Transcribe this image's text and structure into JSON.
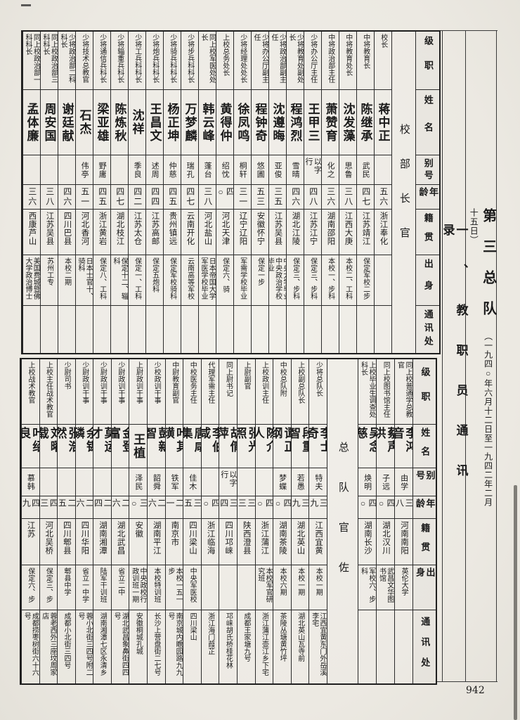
{
  "page": {
    "title_main": "第三总队",
    "title_dates": "（一九四○年六月十二日至一九四二年二月十五日）",
    "section_heading": "一、教职员通讯录",
    "page_number": "942"
  },
  "field_headers": [
    "级职",
    "姓名",
    "别号",
    "年龄",
    "籍贯",
    "出身",
    "通讯处"
  ],
  "table1": {
    "group_label": "校部长官",
    "rows": [
      {
        "rank": "校长",
        "name": "蒋中正",
        "alias": "",
        "age": "五六",
        "origin": "浙江奉化",
        "background": "",
        "address": ""
      },
      {
        "rank": "中将教育长",
        "name": "陈继承",
        "alias": "武民",
        "age": "四七",
        "origin": "江苏靖江",
        "background": "保定军校二步",
        "address": ""
      },
      {
        "rank": "中将教育处长",
        "name": "沈发藻",
        "alias": "思鲁",
        "age": "三八",
        "origin": "江西大庚",
        "background": "本校二、工科",
        "address": ""
      },
      {
        "rank": "中将政治部主任",
        "name": "萧赞育",
        "alias": "化之",
        "age": "三六",
        "origin": "湖南邵阳",
        "background": "本校一、步科",
        "address": ""
      },
      {
        "rank": "少将办公厅主任",
        "name": "王甲三",
        "alias": "以字行",
        "age": "四八",
        "origin": "江苏江宁",
        "background": "保定三、步科",
        "address": ""
      },
      {
        "rank": "少将教育处副处长",
        "name": "程鸿烈",
        "alias": "雪晴",
        "age": "四六",
        "origin": "湖北江陵",
        "background": "保定三、步科",
        "address": ""
      },
      {
        "rank": "少将政治部副主任",
        "name": "沈遵晦",
        "alias": "亚俊",
        "age": "三五",
        "origin": "江苏吴县",
        "background": "中央大学毕业中央政治学校毕业",
        "address": ""
      },
      {
        "rank": "少将办公厅副主任",
        "name": "程钟奇",
        "alias": "悠圃",
        "age": "五三",
        "origin": "安徽怀宁",
        "background": "保定一步",
        "address": ""
      },
      {
        "rank": "少将经理处处长",
        "name": "徐凤鸣",
        "alias": "桐轩",
        "age": "三一",
        "origin": "辽宁辽阳",
        "background": "军需学校毕业",
        "address": ""
      },
      {
        "rank": "上校总务处长",
        "name": "黄得仲",
        "alias": "绍忱",
        "age": "四○",
        "origin": "河北天津",
        "background": "保定六、骑",
        "address": ""
      },
      {
        "rank": "同上校军医处处长",
        "name": "韩云峰",
        "alias": "蓬台",
        "age": "三八",
        "origin": "河北盐山",
        "background": "日本帝国大学军医学校毕业",
        "address": ""
      },
      {
        "rank": "少将步兵科科长",
        "name": "万梦麟",
        "alias": "瑞孔",
        "age": "四七",
        "origin": "云南开化",
        "background": "云南高等军校",
        "address": ""
      },
      {
        "rank": "少将骑兵科科长",
        "name": "杨正坤",
        "alias": "仲慈",
        "age": "四五",
        "origin": "贵州镇远",
        "background": "保定军校骑科",
        "address": ""
      },
      {
        "rank": "少将炮兵科科长",
        "name": "王昌文",
        "alias": "述周",
        "age": "四四",
        "origin": "江苏高邮",
        "background": "保定五炮科",
        "address": ""
      },
      {
        "rank": "少将工兵科科长",
        "name": "沈祥",
        "alias": "季良",
        "age": "四二",
        "origin": "江苏太仓",
        "background": "保定一、工科",
        "address": ""
      },
      {
        "rank": "少将辎重兵科长",
        "name": "陈炼秋",
        "alias": "",
        "age": "四七",
        "origin": "湖北枝江",
        "background": "保定十二、辎科",
        "address": ""
      },
      {
        "rank": "少将通信兵科长",
        "name": "梁亚雄",
        "alias": "野庸",
        "age": "四五",
        "origin": "浙江黄岩",
        "background": "保定八、工科",
        "address": ""
      },
      {
        "rank": "少将技术总教官",
        "name": "石杰",
        "alias": "伟亭",
        "age": "五一",
        "origin": "河北香河",
        "background": "日本士官十、骑科",
        "address": ""
      },
      {
        "rank": "少将政治部二科科长",
        "name": "谢廷献",
        "alias": "",
        "age": "四六",
        "origin": "四川巴县",
        "background": "本校二期",
        "address": ""
      },
      {
        "rank": "同上校政治部三科科长",
        "name": "周安国",
        "alias": "",
        "age": "三八",
        "origin": "江苏吴县",
        "background": "苏州工专",
        "address": ""
      },
      {
        "rank": "同上校政治部一科科长",
        "name": "孟体廉",
        "alias": "",
        "age": "三六",
        "origin": "西康芦山",
        "background": "美国费城暨佛大学政治博士",
        "address": ""
      }
    ]
  },
  "table2": {
    "group_label": "总队官佐",
    "rows_right": [
      {
        "rank": "同上校普通学总教官",
        "name": "李鸿音",
        "alias": "由学",
        "age": "三八",
        "origin": "河南南阳",
        "background": "英伦大学",
        "address": ""
      },
      {
        "rank": "同上校图书馆主任",
        "name": "蔡声洪",
        "alias": "子远",
        "age": "四○",
        "origin": "湖北汉川",
        "background": "武昌文华图书馆",
        "address": ""
      },
      {
        "rank": "上校毕业生调查处科长",
        "name": "吴念慈",
        "alias": "焕明",
        "age": "四○",
        "origin": "湖南长沙",
        "background": "军校六、步科",
        "address": ""
      }
    ],
    "rows_left": [
      {
        "rank": "少将总队长",
        "name": "李士奇",
        "alias": "特夫",
        "age": "三九",
        "origin": "江西宜黄",
        "background": "本校一期",
        "address": "江西宜黄东门外岳溪李宅"
      },
      {
        "rank": "上校副总队长",
        "name": "段重智",
        "alias": "若愚",
        "age": "三九",
        "origin": "湖北英山",
        "background": "本校一期",
        "address": "湖北英山瓦寺前"
      },
      {
        "rank": "中校总队附",
        "name": "谭正纲",
        "alias": "梦蝶",
        "age": "四○",
        "origin": "湖南茶陵",
        "background": "本校六期",
        "address": "茶陵丛塘黄竹坪"
      },
      {
        "rank": "上校政训主任",
        "name": "陈介人",
        "alias": "",
        "age": "四○",
        "origin": "浙江蒲江",
        "background": "本校军官研究班",
        "address": "浙江蒲江壶江乡下宅"
      },
      {
        "rank": "上尉副官",
        "name": "张光照",
        "alias": "",
        "age": "三三",
        "origin": "陕西澄县",
        "background": "",
        "address": "成都王家塘九号"
      },
      {
        "rank": "同上尉书记",
        "name": "胡倩萍",
        "alias": "以字行",
        "age": "三四",
        "origin": "四川邛崃",
        "background": "",
        "address": "邛崃胡氏桥桂花林"
      },
      {
        "rank": "代理军需主任",
        "name": "李伯咸",
        "alias": "",
        "age": "四○",
        "origin": "浙江临海",
        "background": "",
        "address": "浙江海门葭芷"
      },
      {
        "rank": "中校医务主任",
        "name": "唐咸集",
        "alias": "佳木",
        "age": "三五",
        "origin": "四川梁山",
        "background": "中央军医校",
        "address": "四川梁山"
      },
      {
        "rank": "中尉教育副官",
        "name": "叶其璜",
        "alias": "铁军",
        "age": "二一",
        "origin": "南京市",
        "background": "本校一五一步",
        "address": "南京城内瞻园路九九号"
      },
      {
        "rank": "少校政训干事",
        "name": "彭新智",
        "alias": "韶舜",
        "age": "二六",
        "origin": "湖南平江",
        "background": "本校特训班",
        "address": "长沙上营盘街二七号"
      },
      {
        "rank": "上尉政训干事",
        "name": "王植",
        "alias": "泽民",
        "age": "三○",
        "origin": "安徽",
        "background": "中央政校行政训班一期",
        "address": "安徽桐城孔城"
      },
      {
        "rank": "少尉政训干事",
        "name": "金登富",
        "alias": "",
        "age": "二六",
        "origin": "湖北武昌",
        "background": "省立二中",
        "address": "湖北武昌象鼻街四四号"
      },
      {
        "rank": "少尉政训干事",
        "name": "莫运才",
        "alias": "",
        "age": "二四",
        "origin": "湖南湘潭",
        "background": "陆军干训班",
        "address": "湖南湘潭七区永清乡"
      },
      {
        "rank": "少尉政训干事",
        "name": "余锡磷",
        "alias": "",
        "age": "二六",
        "origin": "四川华阳",
        "background": "省立一中学",
        "address": "蓉小北街三四号附二号"
      },
      {
        "rank": "少尉司书",
        "name": "张浩然",
        "alias": "",
        "age": "二五",
        "origin": "四川郫县",
        "background": "郫县中学",
        "address": "成都小北街三四号"
      },
      {
        "rank": "上校主任战术教官",
        "name": "刘曜载",
        "alias": "",
        "age": "四三",
        "origin": "河北吴桥",
        "background": "保定三、步",
        "address": "蓉老西外三座坟周家店"
      },
      {
        "rank": "上校战术教官",
        "name": "叶绍良",
        "alias": "慕韩",
        "age": "四九",
        "origin": "江苏",
        "background": "保定六、步",
        "address": "成都捞枣树街六十六号"
      }
    ]
  }
}
